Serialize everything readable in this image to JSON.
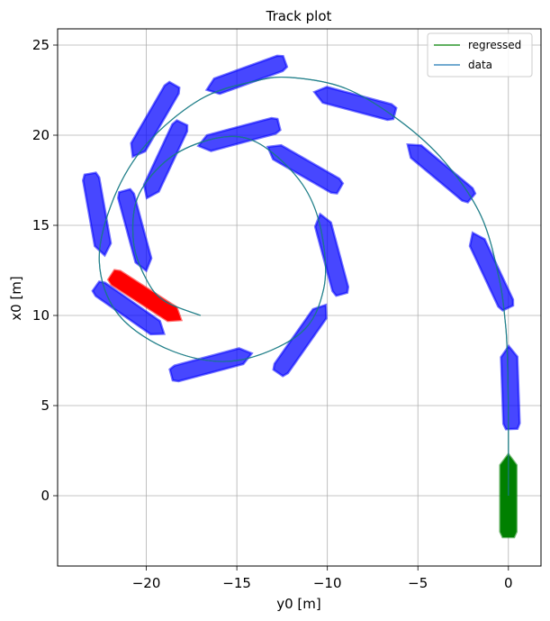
{
  "chart_data": {
    "type": "line",
    "title": "Track plot",
    "xlabel": "y0 [m]",
    "ylabel": "x0 [m]",
    "xlim": [
      -24.9,
      1.8
    ],
    "ylim": [
      -3.9,
      25.9
    ],
    "xticks": [
      -20,
      -15,
      -10,
      -5,
      0
    ],
    "yticks": [
      0,
      5,
      10,
      15,
      20,
      25
    ],
    "xtick_labels": [
      "−20",
      "−15",
      "−10",
      "−5",
      "0"
    ],
    "ytick_labels": [
      "0",
      "5",
      "10",
      "15",
      "20",
      "25"
    ],
    "grid": true,
    "legend_position": "top-right",
    "series": [
      {
        "name": "regressed",
        "color": "#008000",
        "x": [
          0,
          0,
          -0.02,
          -0.07,
          -0.16,
          -0.5,
          -1.5,
          -3.5,
          -6.0,
          -9.0,
          -12.0,
          -14.0,
          -17.0,
          -20.0,
          -21.8,
          -22.6,
          -21.5,
          -18.5,
          -15.0,
          -11.5,
          -10.2,
          -10.3,
          -11.2,
          -13.0,
          -14.8,
          -17.0,
          -19.0,
          -20.5,
          -20.7,
          -20.0,
          -19.0,
          -17.0
        ],
        "y": [
          0,
          4.0,
          6.0,
          8.0,
          9.5,
          12.0,
          15.5,
          18.5,
          20.8,
          22.6,
          23.2,
          23.0,
          22.0,
          19.5,
          16.5,
          13.0,
          10.0,
          8.0,
          7.5,
          9.0,
          11.5,
          14.5,
          17.0,
          19.0,
          19.9,
          19.6,
          18.5,
          16.5,
          14.0,
          12.0,
          10.8,
          10.0
        ]
      },
      {
        "name": "data",
        "color": "#1f77b4",
        "x": [
          0,
          0,
          -0.02,
          -0.07,
          -0.16,
          -0.5,
          -1.5,
          -3.5,
          -6.0,
          -9.0,
          -12.0,
          -14.0,
          -17.0,
          -20.0,
          -21.8,
          -22.6,
          -21.5,
          -18.5,
          -15.0,
          -11.5,
          -10.2,
          -10.3,
          -11.2,
          -13.0,
          -14.8,
          -17.0,
          -19.0,
          -20.5,
          -20.7,
          -20.0,
          -19.0,
          -17.0
        ],
        "y": [
          0,
          4.0,
          6.0,
          8.0,
          9.5,
          12.0,
          15.5,
          18.5,
          20.8,
          22.6,
          23.2,
          23.0,
          22.0,
          19.5,
          16.5,
          13.0,
          10.0,
          8.0,
          7.5,
          9.0,
          11.5,
          14.5,
          17.0,
          19.0,
          19.9,
          19.6,
          18.5,
          16.5,
          14.0,
          12.0,
          10.8,
          10.0
        ]
      }
    ],
    "ships": {
      "start": {
        "x": 0,
        "y": 0,
        "color": "#008000",
        "heading_deg": 0
      },
      "end": {
        "x": -20.0,
        "y": 11.0,
        "color": "#ff0000",
        "heading_deg": 123
      },
      "intermediate_color": "#0000ff",
      "intermediate": [
        {
          "x": 0.1,
          "y": 6.0,
          "heading_deg": 358
        },
        {
          "x": -1.0,
          "y": 12.5,
          "heading_deg": 335
        },
        {
          "x": -3.8,
          "y": 18.0,
          "heading_deg": 310
        },
        {
          "x": -8.5,
          "y": 21.8,
          "heading_deg": 285
        },
        {
          "x": -14.5,
          "y": 23.3,
          "heading_deg": 250
        },
        {
          "x": -19.6,
          "y": 20.8,
          "heading_deg": 210
        },
        {
          "x": -22.7,
          "y": 15.6,
          "heading_deg": 170
        },
        {
          "x": -20.9,
          "y": 10.3,
          "heading_deg": 125
        },
        {
          "x": -16.4,
          "y": 7.3,
          "heading_deg": 75
        },
        {
          "x": -11.4,
          "y": 8.7,
          "heading_deg": 35
        },
        {
          "x": -9.8,
          "y": 13.4,
          "heading_deg": 345
        },
        {
          "x": -11.3,
          "y": 18.2,
          "heading_deg": 300
        },
        {
          "x": -14.9,
          "y": 20.0,
          "heading_deg": 255
        },
        {
          "x": -19.0,
          "y": 18.6,
          "heading_deg": 205
        },
        {
          "x": -20.6,
          "y": 14.7,
          "heading_deg": 165
        }
      ]
    }
  }
}
